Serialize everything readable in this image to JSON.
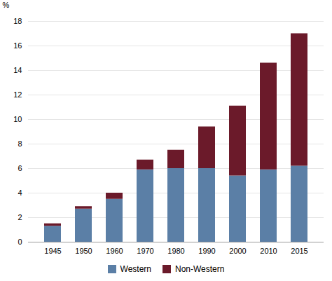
{
  "chart_data": {
    "type": "bar",
    "stacked": true,
    "ylabel": "%",
    "categories": [
      "1945",
      "1950",
      "1960",
      "1970",
      "1980",
      "1990",
      "2000",
      "2010",
      "2015"
    ],
    "series": [
      {
        "name": "Western",
        "color": "#5b7fa6",
        "values": [
          1.3,
          2.7,
          3.5,
          5.9,
          6.0,
          6.0,
          5.4,
          5.9,
          6.2
        ]
      },
      {
        "name": "Non-Western",
        "color": "#6b1a2a",
        "values": [
          0.2,
          0.2,
          0.5,
          0.8,
          1.5,
          3.4,
          5.7,
          8.7,
          10.8
        ]
      }
    ],
    "ylim": [
      0,
      18
    ],
    "yticks": [
      0,
      2,
      4,
      6,
      8,
      10,
      12,
      14,
      16,
      18
    ],
    "grid": true,
    "legend": "bottom"
  }
}
